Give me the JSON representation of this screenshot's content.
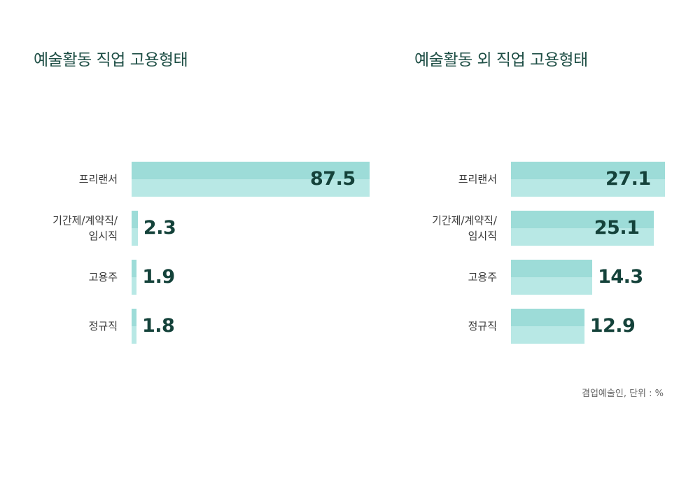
{
  "unit_note": "겸업예술인, 단위 : %",
  "chart_data": [
    {
      "type": "bar",
      "orientation": "horizontal",
      "title": "예술활동 직업 고용형태",
      "categories": [
        "프리랜서",
        "기간제/계약직/\n임시직",
        "고용주",
        "정규직"
      ],
      "values": [
        87.5,
        2.3,
        1.9,
        1.8
      ],
      "xlim": [
        0,
        87.5
      ],
      "grid": false,
      "colors": {
        "bar_top": "#9ddcd8",
        "bar_bottom": "#b8e8e5",
        "value_text": "#14423a",
        "title": "#1f4f46"
      }
    },
    {
      "type": "bar",
      "orientation": "horizontal",
      "title": "예술활동 외 직업 고용형태",
      "categories": [
        "프리랜서",
        "기간제/계약직/\n임시직",
        "고용주",
        "정규직"
      ],
      "values": [
        27.1,
        25.1,
        14.3,
        12.9
      ],
      "xlim": [
        0,
        27.1
      ],
      "grid": false,
      "colors": {
        "bar_top": "#9ddcd8",
        "bar_bottom": "#b8e8e5",
        "value_text": "#14423a",
        "title": "#1f4f46"
      }
    }
  ]
}
